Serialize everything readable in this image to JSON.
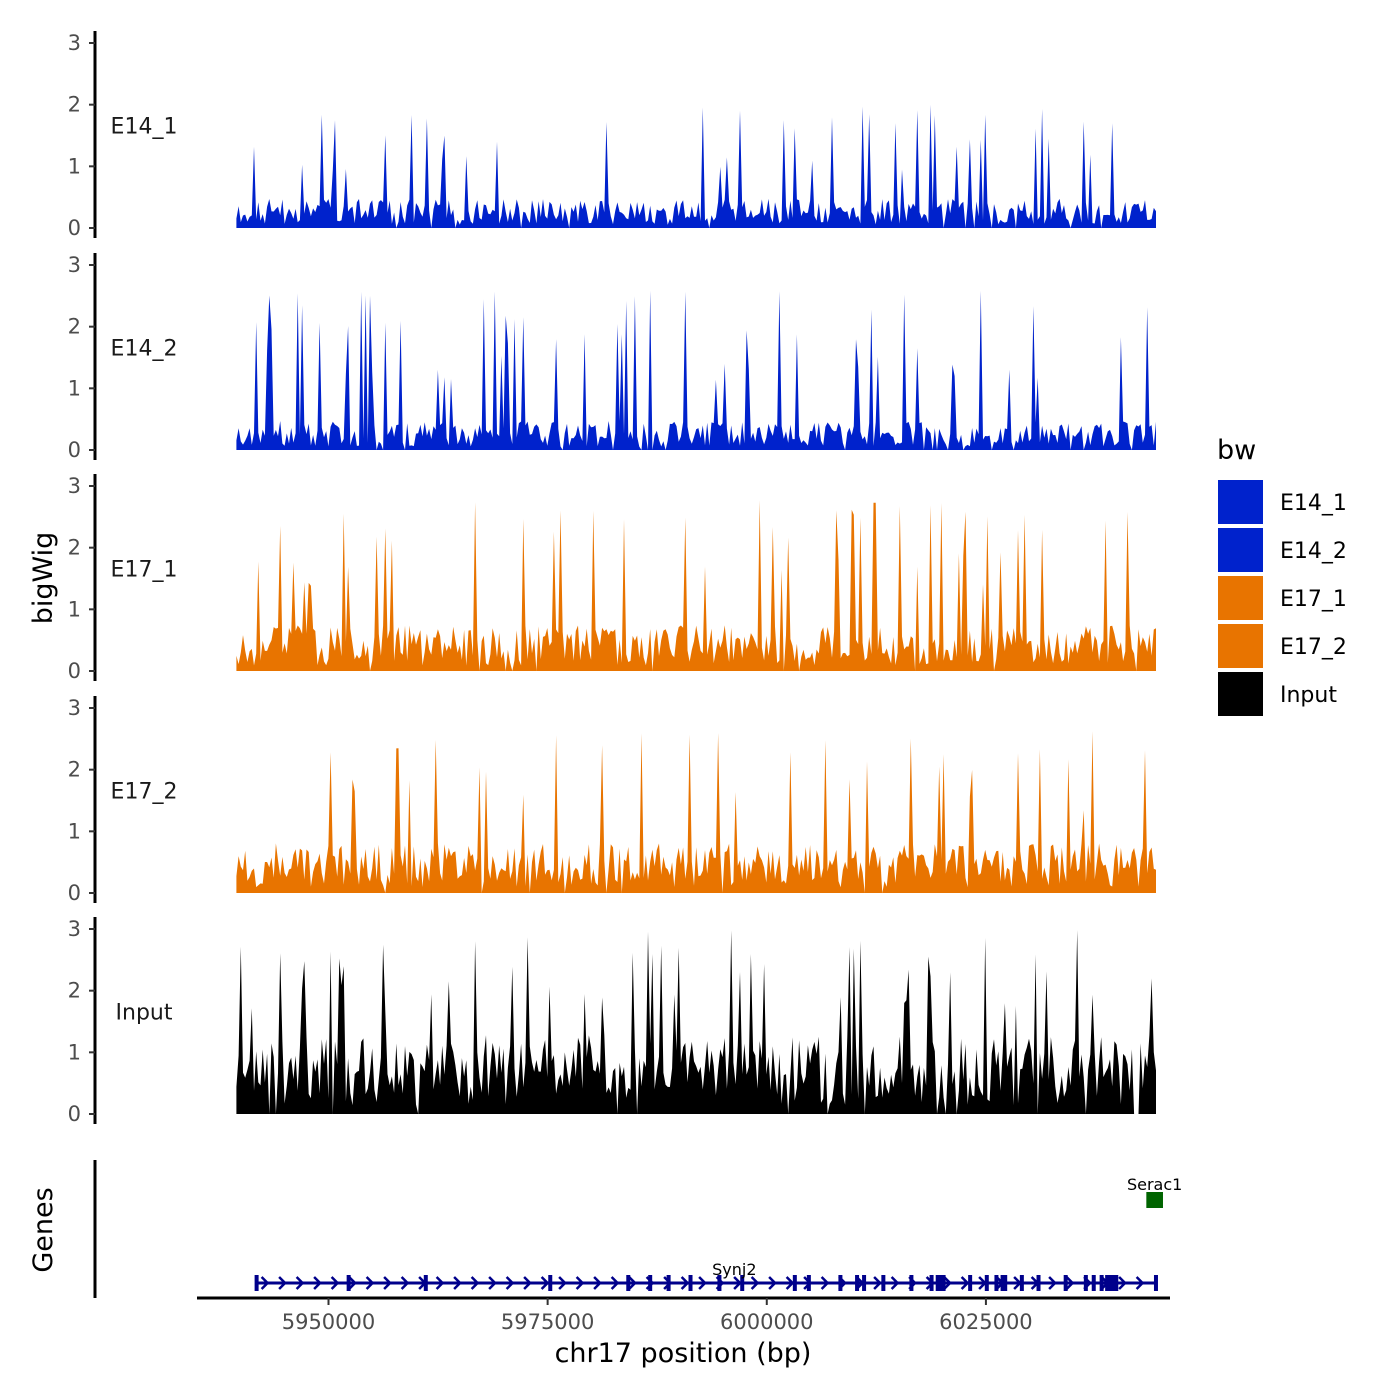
{
  "chart_data": {
    "type": "area",
    "description_free": true,
    "ylabel": "bigWig",
    "xlabel": "chr17 position (bp)",
    "x_range": [
      5935000,
      6046000
    ],
    "ylim": [
      0,
      3
    ],
    "y_ticks": [
      "0",
      "1",
      "2",
      "3"
    ],
    "x_ticks": [
      5950000,
      5975000,
      6000000,
      6025000
    ],
    "x_tick_labels": [
      "5950000",
      "5975000",
      "6000000",
      "6025000"
    ],
    "coverage_start": 5939500,
    "coverage_end": 6044400,
    "tracks": [
      {
        "name": "E14_1",
        "color": "#0022cc",
        "peak": 2.0,
        "base": 0.35,
        "seed": 11
      },
      {
        "name": "E14_2",
        "color": "#0022cc",
        "peak": 2.6,
        "base": 0.35,
        "seed": 23
      },
      {
        "name": "E17_1",
        "color": "#e87400",
        "peak": 2.8,
        "base": 0.55,
        "seed": 37
      },
      {
        "name": "E17_2",
        "color": "#e87400",
        "peak": 2.65,
        "base": 0.6,
        "seed": 53
      },
      {
        "name": "Input",
        "color": "#000000",
        "peak": 3.0,
        "base": 0.95,
        "seed": 71
      }
    ],
    "genes_label": "Genes",
    "genes": [
      {
        "name": "Synj2",
        "start": 5941800,
        "end": 6044400,
        "strand": "+",
        "color": "#00008b",
        "exons": [
          5941800,
          5952300,
          5961100,
          5975300,
          5984200,
          5986700,
          5988800,
          5991300,
          5994600,
          5997200,
          6003200,
          6004800,
          6008400,
          6010300,
          6011100,
          6013300,
          6016500,
          6018800,
          6019500,
          6020100,
          6023200,
          6025100,
          6026200,
          6026900,
          6027200,
          6029100,
          6031000,
          6034100,
          6036400,
          6037300,
          6038200,
          6039100,
          6039700,
          6044400
        ]
      },
      {
        "name": "Serac1",
        "start": 6043300,
        "end": 6045200,
        "strand": "-",
        "color": "#006400",
        "exons": []
      }
    ],
    "legend": {
      "title": "bw",
      "entries": [
        {
          "label": "E14_1",
          "color": "#0022cc"
        },
        {
          "label": "E14_2",
          "color": "#0022cc"
        },
        {
          "label": "E17_1",
          "color": "#e87400"
        },
        {
          "label": "E17_2",
          "color": "#e87400"
        },
        {
          "label": "Input",
          "color": "#000000"
        }
      ]
    }
  }
}
